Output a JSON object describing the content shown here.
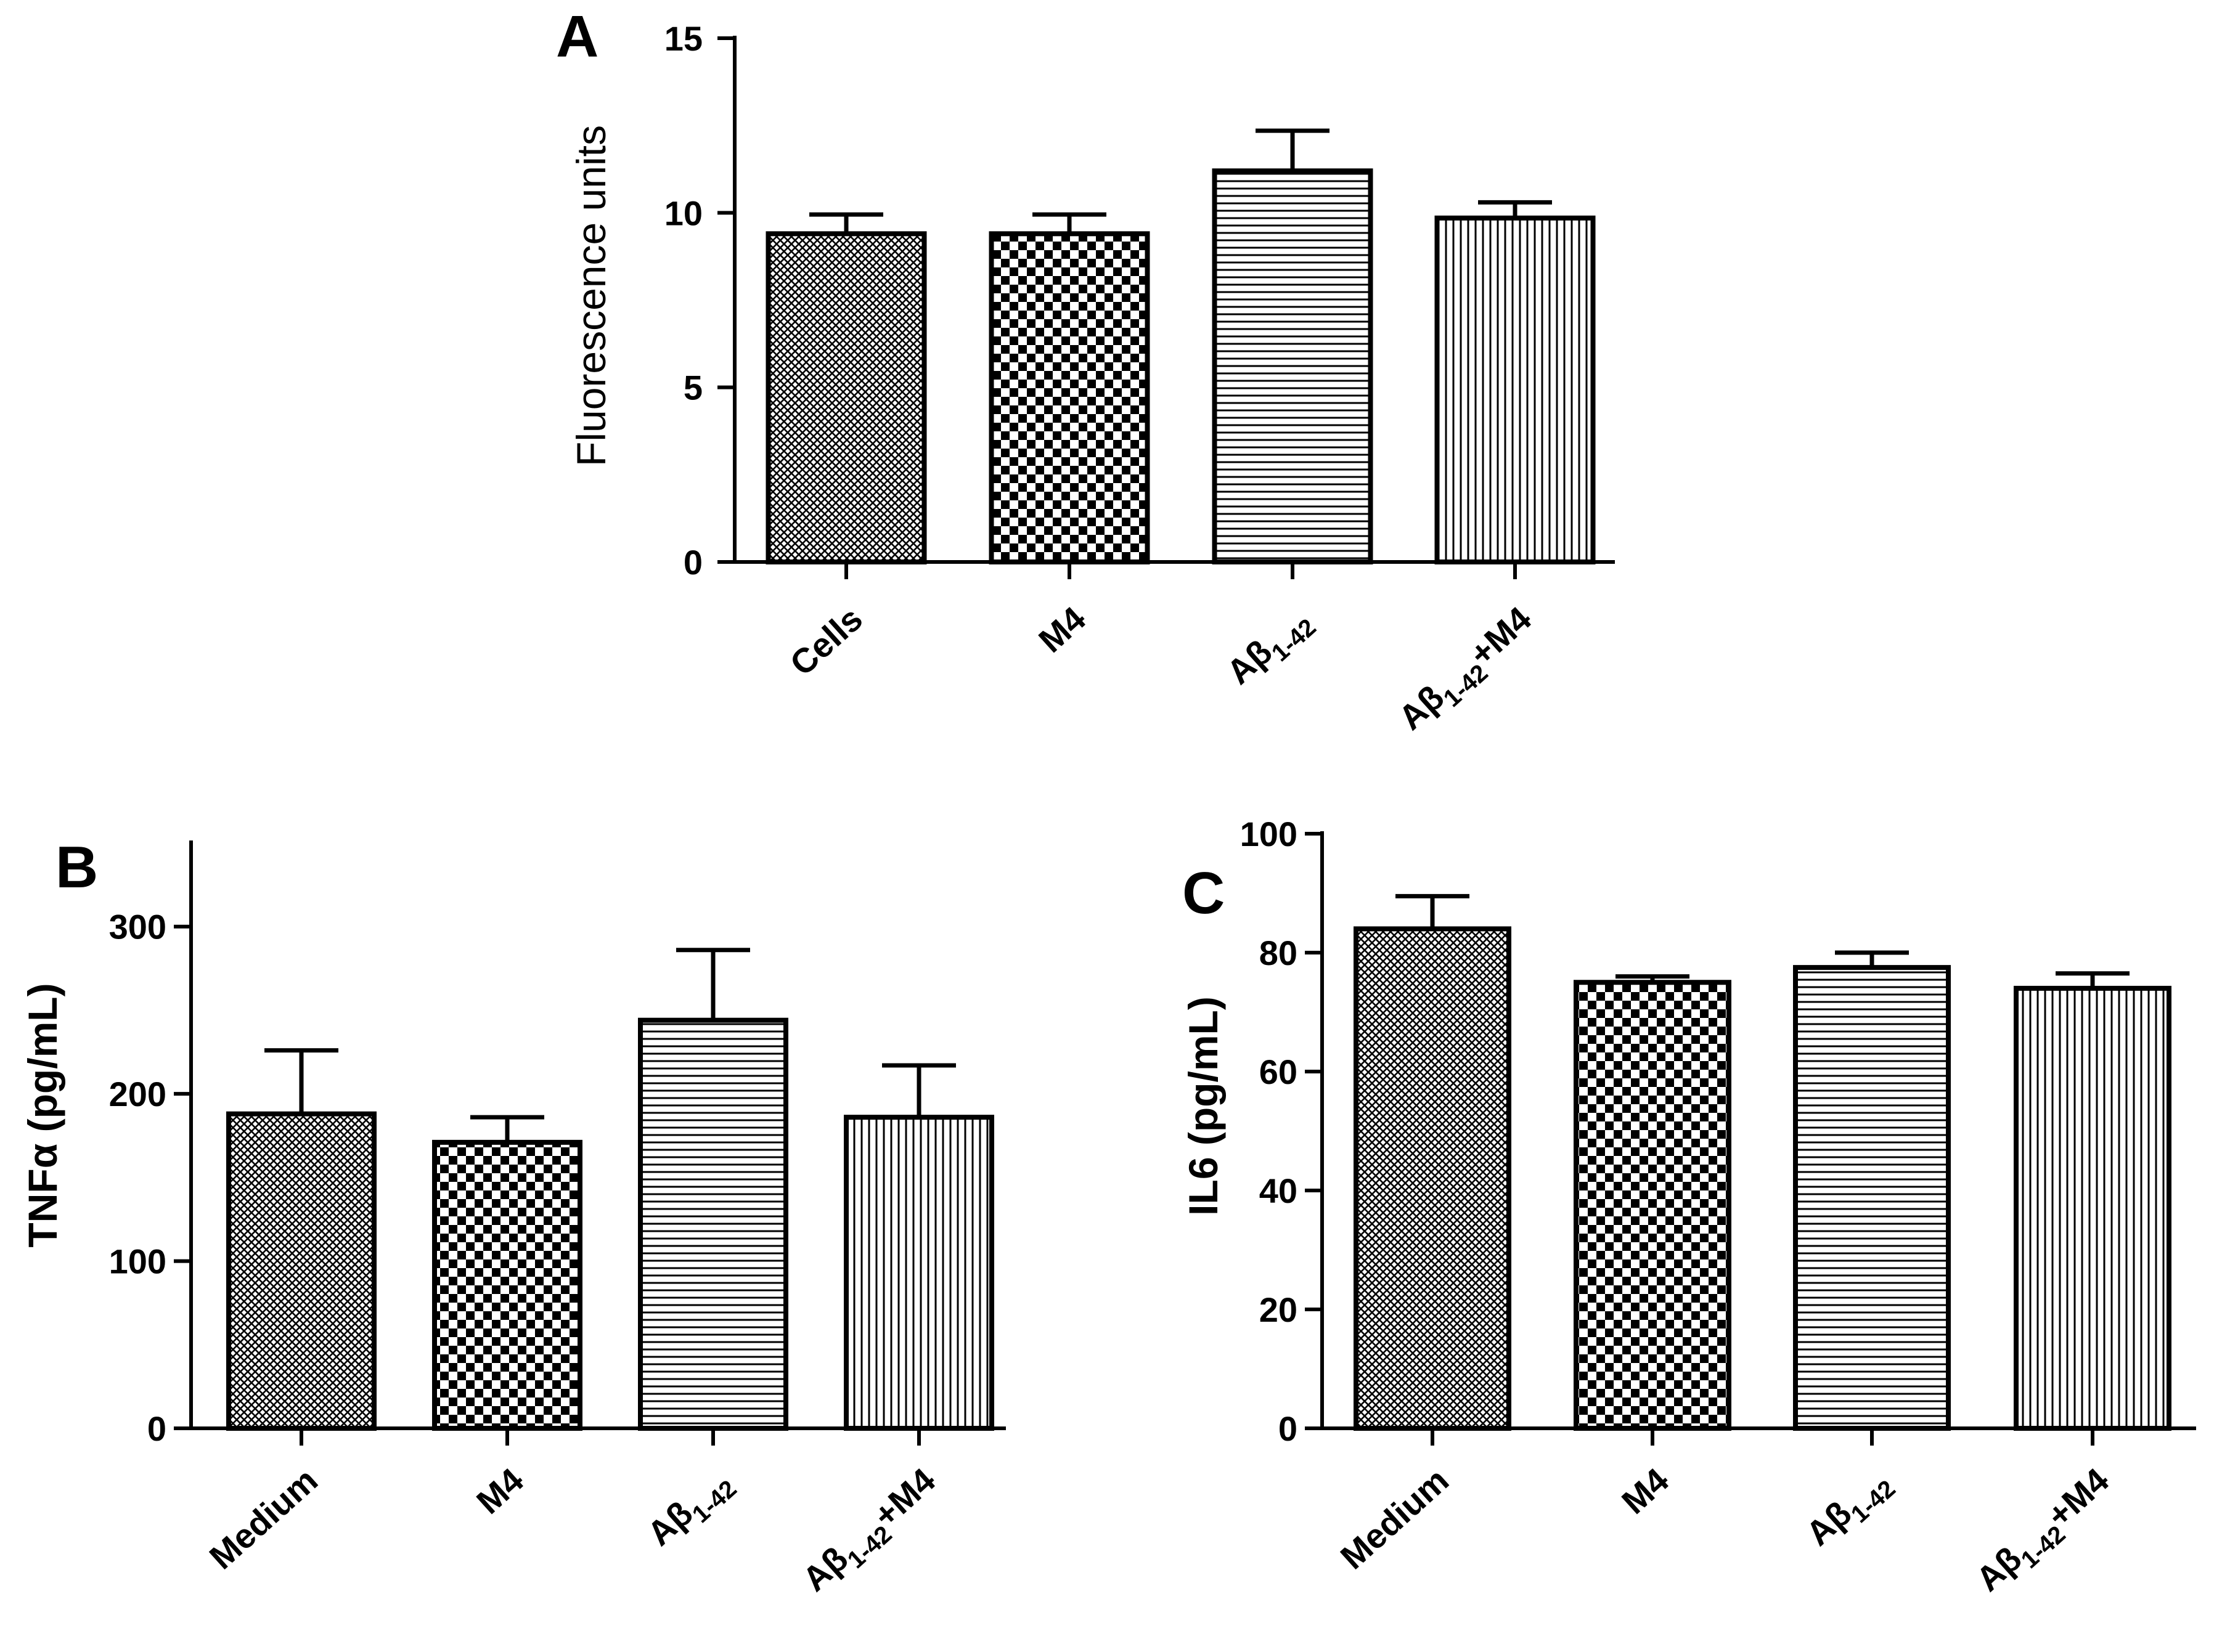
{
  "chart_data": [
    {
      "type": "bar",
      "panel": "A",
      "panel_label": "A",
      "ylabel": "Fluorescence units",
      "ylim": [
        0,
        15
      ],
      "ticks": [
        0,
        5,
        10,
        15
      ],
      "categories": [
        {
          "main": "Cells",
          "sub": "",
          "suffix": ""
        },
        {
          "main": "M4",
          "sub": "",
          "suffix": ""
        },
        {
          "main": "Aβ",
          "sub": "1-42",
          "suffix": ""
        },
        {
          "main": "Aβ",
          "sub": "1-42",
          "suffix": "+M4"
        }
      ],
      "values": [
        9.4,
        9.4,
        11.2,
        9.85
      ],
      "errors": [
        0.55,
        0.55,
        1.15,
        0.45
      ],
      "patterns": [
        "crosshatch",
        "checker",
        "horizontal",
        "vertical"
      ]
    },
    {
      "type": "bar",
      "panel": "B",
      "panel_label": "B",
      "ylabel": "TNFα (pg/mL)",
      "ylim": [
        0,
        350
      ],
      "ticks": [
        0,
        100,
        200,
        300
      ],
      "categories": [
        {
          "main": "Medium",
          "sub": "",
          "suffix": ""
        },
        {
          "main": "M4",
          "sub": "",
          "suffix": ""
        },
        {
          "main": "Aβ",
          "sub": "1-42",
          "suffix": ""
        },
        {
          "main": "Aβ",
          "sub": "1-42",
          "suffix": "+M4"
        }
      ],
      "values": [
        188,
        171,
        244,
        186
      ],
      "errors": [
        38,
        15,
        42,
        31
      ],
      "patterns": [
        "crosshatch",
        "checker",
        "horizontal",
        "vertical"
      ]
    },
    {
      "type": "bar",
      "panel": "C",
      "panel_label": "C",
      "ylabel": "IL6 (pg/mL)",
      "ylim": [
        0,
        100
      ],
      "ticks": [
        0,
        20,
        40,
        60,
        80,
        100
      ],
      "categories": [
        {
          "main": "Medium",
          "sub": "",
          "suffix": ""
        },
        {
          "main": "M4",
          "sub": "",
          "suffix": ""
        },
        {
          "main": "Aβ",
          "sub": "1-42",
          "suffix": ""
        },
        {
          "main": "Aβ",
          "sub": "1-42",
          "suffix": "+M4"
        }
      ],
      "values": [
        84,
        75,
        77.5,
        74
      ],
      "errors": [
        5.5,
        1,
        2.5,
        2.5
      ],
      "patterns": [
        "crosshatch",
        "checker",
        "horizontal",
        "vertical"
      ]
    }
  ]
}
